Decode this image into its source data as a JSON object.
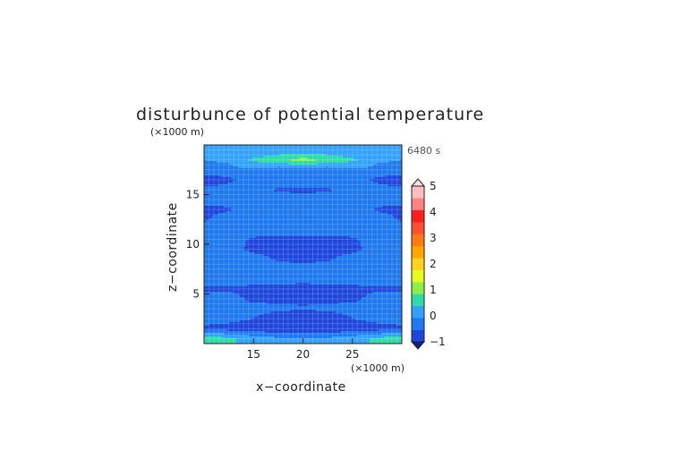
{
  "chart_data": {
    "type": "heatmap",
    "title": "disturbunce of potential temperature",
    "timestamp": "6480 s",
    "xlabel": "x−coordinate",
    "ylabel": "z−coordinate",
    "x_unit_label": "(×1000 m)",
    "y_unit_label": "(×1000 m)",
    "xlim": [
      10,
      30
    ],
    "ylim": [
      0,
      20
    ],
    "x_ticks": [
      15,
      20,
      25
    ],
    "y_ticks": [
      5,
      10,
      15
    ],
    "x_tick_labels": [
      "15",
      "20",
      "25"
    ],
    "y_tick_labels": [
      "5",
      "10",
      "15"
    ],
    "grid": true,
    "colorbar": {
      "placement": "right",
      "levels": [
        -1,
        -0.5,
        0,
        0.5,
        1,
        1.5,
        2,
        2.5,
        3,
        3.5,
        4,
        4.5,
        5
      ],
      "tick_values": [
        -1,
        0,
        1,
        2,
        3,
        4,
        5
      ],
      "tick_labels": [
        "−1",
        "0",
        "1",
        "2",
        "3",
        "4",
        "5"
      ],
      "colors": [
        "#1e46dc",
        "#1e78f0",
        "#33a2ff",
        "#2edcaa",
        "#8cf046",
        "#e6fa1e",
        "#ffd21e",
        "#ffa500",
        "#ff7814",
        "#ff5032",
        "#ff1e1e",
        "#ff8282",
        "#ffbebe"
      ],
      "under_color": "#0a1e8c",
      "over_color": "#ffe0e0"
    },
    "field_rows": [
      {
        "z": 0.5,
        "values": [
          0.9,
          0.6,
          0.3,
          0.1,
          0.0,
          0.1,
          0.3,
          0.6,
          0.9
        ]
      },
      {
        "z": 1.5,
        "values": [
          -0.6,
          -0.7,
          -0.8,
          -0.9,
          -0.9,
          -0.9,
          -0.8,
          -0.7,
          -0.6
        ]
      },
      {
        "z": 2.5,
        "values": [
          -0.3,
          -0.35,
          -0.5,
          -0.8,
          -0.95,
          -0.8,
          -0.5,
          -0.35,
          -0.3
        ]
      },
      {
        "z": 3.5,
        "values": [
          -0.3,
          -0.3,
          -0.35,
          -0.4,
          -0.45,
          -0.4,
          -0.35,
          -0.3,
          -0.3
        ]
      },
      {
        "z": 4.5,
        "values": [
          -0.35,
          -0.35,
          -0.6,
          -0.6,
          -0.6,
          -0.6,
          -0.6,
          -0.35,
          -0.35
        ]
      },
      {
        "z": 5.5,
        "values": [
          -0.55,
          -0.55,
          -0.6,
          -0.6,
          -0.65,
          -0.6,
          -0.6,
          -0.55,
          -0.55
        ]
      },
      {
        "z": 6.5,
        "values": [
          -0.3,
          -0.3,
          -0.35,
          -0.35,
          -0.4,
          -0.35,
          -0.35,
          -0.3,
          -0.3
        ]
      },
      {
        "z": 7.5,
        "values": [
          -0.3,
          -0.3,
          -0.3,
          -0.3,
          -0.35,
          -0.3,
          -0.3,
          -0.3,
          -0.3
        ]
      },
      {
        "z": 8.5,
        "values": [
          -0.3,
          -0.3,
          -0.35,
          -0.55,
          -0.6,
          -0.55,
          -0.35,
          -0.3,
          -0.3
        ]
      },
      {
        "z": 9.5,
        "values": [
          -0.3,
          -0.35,
          -0.6,
          -0.6,
          -0.65,
          -0.6,
          -0.6,
          -0.35,
          -0.3
        ]
      },
      {
        "z": 10.5,
        "values": [
          -0.3,
          -0.35,
          -0.55,
          -0.6,
          -0.6,
          -0.6,
          -0.55,
          -0.35,
          -0.3
        ]
      },
      {
        "z": 11.5,
        "values": [
          -0.3,
          -0.3,
          -0.3,
          -0.35,
          -0.35,
          -0.35,
          -0.3,
          -0.3,
          -0.3
        ]
      },
      {
        "z": 12.5,
        "values": [
          -0.55,
          -0.3,
          -0.1,
          -0.05,
          -0.05,
          -0.05,
          -0.1,
          -0.3,
          -0.55
        ]
      },
      {
        "z": 13.5,
        "values": [
          -0.6,
          -0.55,
          -0.2,
          -0.1,
          -0.05,
          -0.1,
          -0.2,
          -0.55,
          -0.6
        ]
      },
      {
        "z": 14.5,
        "values": [
          -0.35,
          -0.35,
          -0.3,
          -0.3,
          -0.3,
          -0.3,
          -0.3,
          -0.35,
          -0.35
        ]
      },
      {
        "z": 15.5,
        "values": [
          -0.3,
          -0.3,
          -0.35,
          -0.55,
          -0.6,
          -0.55,
          -0.35,
          -0.3,
          -0.3
        ]
      },
      {
        "z": 16.5,
        "values": [
          -0.95,
          -0.6,
          -0.3,
          -0.1,
          -0.1,
          -0.1,
          -0.3,
          -0.6,
          -0.95
        ]
      },
      {
        "z": 17.5,
        "values": [
          -0.1,
          -0.1,
          -0.05,
          -0.3,
          -0.3,
          -0.3,
          -0.05,
          -0.1,
          -0.1
        ]
      },
      {
        "z": 18.5,
        "values": [
          0.0,
          0.05,
          0.6,
          0.9,
          1.2,
          0.9,
          0.6,
          0.05,
          0.0
        ]
      },
      {
        "z": 19.5,
        "values": [
          0.0,
          0.0,
          0.05,
          0.1,
          0.1,
          0.1,
          0.05,
          0.0,
          0.0
        ]
      }
    ]
  }
}
